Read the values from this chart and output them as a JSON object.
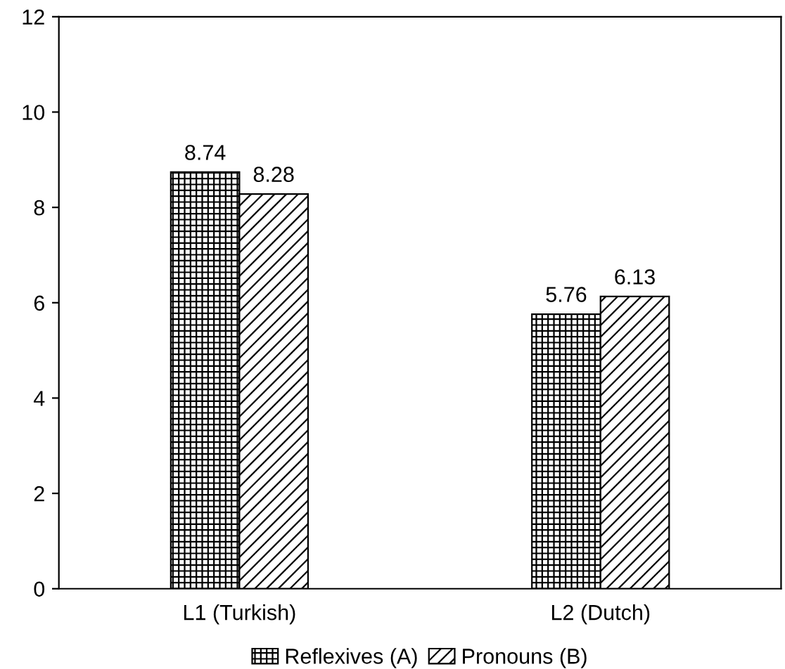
{
  "chart_data": {
    "type": "bar",
    "categories": [
      "L1 (Turkish)",
      "L2 (Dutch)"
    ],
    "series": [
      {
        "name": "Reflexives (A)",
        "color": "#000000",
        "values": [
          8.74,
          5.76
        ]
      },
      {
        "name": "Pronouns (B)",
        "color": "#000000",
        "values": [
          8.28,
          6.13
        ]
      }
    ],
    "ylim": [
      0,
      12
    ],
    "yticks": [
      0,
      2,
      4,
      6,
      8,
      10,
      12
    ],
    "data_labels": true,
    "grid": false,
    "legend": "bottom"
  }
}
